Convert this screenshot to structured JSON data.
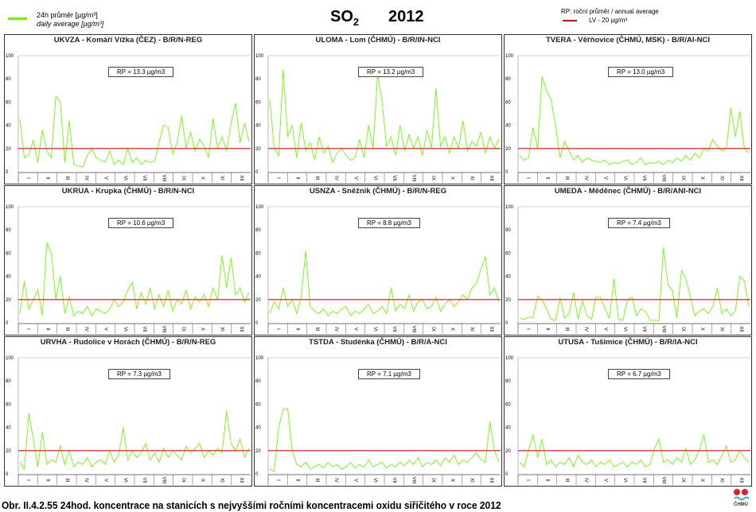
{
  "legend": {
    "daily_cz": "24h průměr [µg/m³]",
    "daily_en": "daily average [µg/m³]",
    "rp": "RP: roční průměr / annual average",
    "lv": "LV - 20 µg/m³"
  },
  "title": {
    "compound": "SO",
    "subscript": "2",
    "year": "2012"
  },
  "caption": "Obr. II.4.2.55  24hod. koncentrace na stanicích s nejvyššími ročními koncentracemi oxidu siřičitého v roce 2012",
  "logo_text": "ČHMÚ",
  "colors": {
    "series": "#66ff00",
    "limit": "#ff0000"
  },
  "chart_data": {
    "type": "line",
    "x_unit": "week of 2012 (approx.)",
    "yticks": [
      "0",
      "20",
      "40",
      "60",
      "80",
      "100"
    ],
    "ylim": [
      0,
      100
    ],
    "limit_value": 20,
    "months": [
      "I",
      "II",
      "III",
      "IV",
      "V",
      "VI",
      "VII",
      "VIII",
      "IX",
      "X",
      "XI",
      "XII"
    ],
    "panels": [
      {
        "title": "UKVZA - Komáří Vížka (ČEZ) - B/R/N-REG",
        "rp": "RP = 13.3 µg/m3",
        "values": [
          45,
          12,
          15,
          27,
          8,
          36,
          18,
          12,
          65,
          60,
          8,
          44,
          6,
          5,
          4,
          14,
          20,
          12,
          10,
          8,
          18,
          6,
          10,
          6,
          20,
          8,
          12,
          6,
          10,
          8,
          9,
          26,
          40,
          38,
          15,
          25,
          48,
          20,
          34,
          18,
          28,
          22,
          12,
          46,
          20,
          30,
          18,
          42,
          59,
          25,
          42,
          26
        ]
      },
      {
        "title": "ULOMA - Lom (ČHMÚ) - B/R/IN-NCI",
        "rp": "RP = 13.2 µg/m3",
        "values": [
          63,
          20,
          14,
          88,
          30,
          40,
          12,
          42,
          18,
          25,
          10,
          30,
          16,
          22,
          8,
          16,
          20,
          14,
          10,
          12,
          28,
          12,
          40,
          20,
          84,
          60,
          22,
          30,
          14,
          40,
          18,
          32,
          20,
          30,
          14,
          36,
          20,
          72,
          22,
          30,
          16,
          30,
          20,
          44,
          18,
          26,
          22,
          34,
          16,
          30,
          20,
          28
        ]
      },
      {
        "title": "TVERA -  Věřňovice (ČHMÚ, MSK) - B/R/AI-NCI",
        "rp": "RP = 13.0 µg/m3",
        "values": [
          14,
          10,
          12,
          38,
          20,
          82,
          70,
          62,
          40,
          12,
          26,
          18,
          10,
          14,
          8,
          12,
          10,
          9,
          8,
          10,
          6,
          8,
          7,
          9,
          10,
          6,
          8,
          12,
          6,
          8,
          7,
          9,
          6,
          10,
          8,
          12,
          9,
          14,
          10,
          16,
          12,
          20,
          18,
          28,
          22,
          18,
          20,
          55,
          30,
          52,
          20,
          16
        ]
      },
      {
        "title": "UKRUA - Krupka (ČHMÚ) - B/R/N-NCI",
        "rp": "RP = 10.6 µg/m3",
        "values": [
          8,
          36,
          12,
          20,
          28,
          6,
          69,
          60,
          20,
          40,
          8,
          22,
          6,
          10,
          8,
          14,
          6,
          12,
          10,
          8,
          12,
          20,
          14,
          18,
          28,
          35,
          12,
          26,
          16,
          30,
          12,
          24,
          14,
          28,
          10,
          20,
          16,
          28,
          12,
          22,
          18,
          24,
          14,
          30,
          20,
          58,
          30,
          56,
          24,
          30,
          18,
          26
        ]
      },
      {
        "title": "USNZA - Sněžník (ČHMÚ) - B/R/N-REG",
        "rp": "RP = 8.8 µg/m3",
        "values": [
          8,
          18,
          12,
          30,
          14,
          20,
          8,
          22,
          62,
          14,
          10,
          8,
          12,
          6,
          10,
          8,
          12,
          14,
          6,
          10,
          8,
          12,
          16,
          8,
          10,
          14,
          8,
          30,
          10,
          16,
          12,
          24,
          10,
          18,
          20,
          12,
          14,
          22,
          10,
          16,
          20,
          14,
          18,
          24,
          20,
          30,
          34,
          46,
          57,
          24,
          30,
          18
        ]
      },
      {
        "title": "UMEDA  - Měděnec (ČHMÚ) - B/R/ANI-NCI",
        "rp": "RP = 7.4 µg/m3",
        "values": [
          4,
          3,
          5,
          4,
          23,
          20,
          12,
          3,
          2,
          22,
          4,
          8,
          26,
          3,
          19,
          6,
          3,
          22,
          22,
          12,
          4,
          38,
          3,
          2,
          20,
          22,
          6,
          12,
          10,
          2,
          2,
          2,
          65,
          33,
          28,
          4,
          45,
          38,
          22,
          6,
          10,
          12,
          8,
          14,
          30,
          8,
          12,
          6,
          10,
          40,
          36,
          14
        ]
      },
      {
        "title": "URVHA - Rudolice v Horách (ČHMÚ) - B/R/N-REG",
        "rp": "RP = 7.3 µg/m3",
        "values": [
          10,
          4,
          52,
          30,
          6,
          36,
          8,
          12,
          10,
          24,
          8,
          20,
          6,
          10,
          8,
          14,
          6,
          10,
          12,
          8,
          20,
          10,
          16,
          40,
          12,
          20,
          14,
          18,
          26,
          12,
          18,
          10,
          22,
          14,
          20,
          16,
          12,
          24,
          18,
          22,
          26,
          14,
          20,
          16,
          22,
          18,
          54,
          26,
          20,
          30,
          14,
          22
        ]
      },
      {
        "title": "TSTDA - Studénka (ČHMÚ) - B/R/A-NCI",
        "rp": "RP = 7.1 µg/m3",
        "values": [
          4,
          2,
          40,
          56,
          56,
          20,
          8,
          6,
          10,
          4,
          6,
          8,
          5,
          10,
          6,
          8,
          4,
          6,
          10,
          5,
          8,
          6,
          12,
          6,
          8,
          10,
          5,
          8,
          6,
          10,
          7,
          12,
          8,
          14,
          6,
          10,
          8,
          12,
          7,
          14,
          10,
          16,
          8,
          12,
          10,
          14,
          18,
          12,
          10,
          45,
          20,
          10
        ]
      },
      {
        "title": "UTUSA - Tušimice (ČHMÚ) - B/R/IA-NCI",
        "rp": "RP = 6.7 µg/m3",
        "values": [
          10,
          6,
          20,
          34,
          14,
          30,
          8,
          12,
          6,
          10,
          8,
          14,
          6,
          16,
          10,
          8,
          12,
          6,
          10,
          8,
          12,
          6,
          8,
          10,
          6,
          10,
          8,
          12,
          6,
          8,
          22,
          30,
          10,
          12,
          8,
          14,
          10,
          22,
          8,
          12,
          20,
          34,
          10,
          12,
          8,
          16,
          24,
          10,
          12,
          20,
          14,
          10
        ]
      }
    ]
  }
}
